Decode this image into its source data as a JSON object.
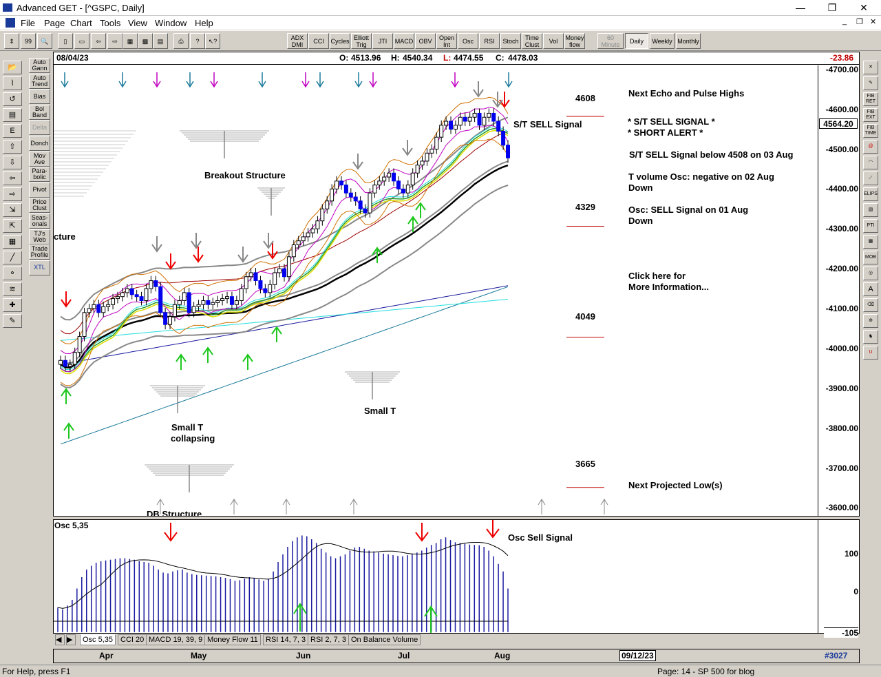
{
  "window": {
    "title": "Advanced GET - [^GSPC, Daily]",
    "min": "—",
    "restore": "❐",
    "close": "✕"
  },
  "menu": [
    "File",
    "Page",
    "Chart",
    "Tools",
    "View",
    "Window",
    "Help"
  ],
  "toolbar": {
    "indicators": [
      "ADX DMI",
      "CCI",
      "Cycles",
      "Elliott Trig",
      "JTI",
      "MACD",
      "OBV",
      "Open Int",
      "Osc",
      "RSI",
      "Stoch",
      "Time Clust",
      "Vol",
      "Money flow"
    ],
    "periods": [
      "60 Minute",
      "Daily",
      "Weekly",
      "Monthly"
    ],
    "active_period": "Daily"
  },
  "left_tools": [
    "Auto Gann",
    "Auto Trend",
    "Bias",
    "Bol Band",
    "Delta",
    "Donch",
    "Mov Ave",
    "Para-bolic",
    "Pivot",
    "Price Clust",
    "Seas-onals",
    "TJ's Web",
    "Trade Profile",
    "XTL"
  ],
  "left_icons": [
    "open-folder-icon",
    "elliott-wave-icon",
    "reset-icon",
    "study-icon",
    "elliott-icon",
    "arrow-up-icon",
    "arrow-down-icon",
    "arrow-left-icon",
    "arrow-right-icon",
    "compress-icon",
    "expand-icon",
    "spreadsheet-icon",
    "lines-icon",
    "gann-icon",
    "fib-icon",
    "crosshair-icon",
    "notes-icon"
  ],
  "right_tools": [
    "close-icon",
    "pencil-icon",
    "fib-ret-icon",
    "fib-ext-icon",
    "fib-time-icon",
    "spiral-icon",
    "arc-icon",
    "fan-icon",
    "elips-icon",
    "channel-icon",
    "pti-icon",
    "grid-icon",
    "mob-icon",
    "target-icon",
    "text-icon",
    "eraser-icon",
    "magnet-icon",
    "bull-icon",
    "magnet-red-icon"
  ],
  "right_tool_labels": {
    "fib_ret": "FIB RET",
    "fib_ext": "FIB EXT",
    "fib_time": "FIB TIME",
    "elips": "ELIPS",
    "pti": "PTI",
    "mob": "MOB",
    "text": "A"
  },
  "info": {
    "date": "08/04/23",
    "open_label": "O:",
    "open": "4513.96",
    "high_label": "H:",
    "high": "4540.34",
    "low_label": "L:",
    "low": "4474.55",
    "close_label": "C:",
    "close": "4478.03",
    "change": "-23.86"
  },
  "price_axis": {
    "ticks": [
      "4700.00",
      "4600.00",
      "4500.00",
      "4400.00",
      "4300.00",
      "4200.00",
      "4100.00",
      "4000.00",
      "3900.00",
      "3800.00",
      "3700.00",
      "3600.00"
    ],
    "current": "4564.20"
  },
  "levels": [
    {
      "value": "4608"
    },
    {
      "value": "4329"
    },
    {
      "value": "4049"
    },
    {
      "value": "3665"
    }
  ],
  "annotations": {
    "echo_highs": "Next Echo and Pulse Highs",
    "sell_signal_1": "* S/T SELL SIGNAL *",
    "short_alert": "* SHORT ALERT *",
    "sell_below": "S/T SELL Signal below 4508 on 03 Aug",
    "tvol_1": "T volume Osc: negative on 02 Aug",
    "tvol_2": "Down",
    "osc_1": "Osc: SELL Signal on 01 Aug",
    "osc_2": "Down",
    "click_1": "Click here for",
    "click_2": "More Information...",
    "proj_low": "Next Projected Low(s)",
    "st_sell": "S/T SELL Signal",
    "breakout": "Breakout Structure",
    "cture": "cture",
    "small_t": "Small T",
    "small_t_collapse_1": "Small T",
    "small_t_collapse_2": "collapsing",
    "db_structure": "DB Structure",
    "osc_sell": "Osc Sell Signal"
  },
  "osc": {
    "label": "Osc 5,35",
    "ticks": [
      "100",
      "0",
      "-105"
    ]
  },
  "osc_tabs": [
    "Osc 5,35",
    "CCI 20",
    "MACD 19, 39, 9",
    "Money Flow 11",
    "RSI 14, 7, 3",
    "RSI 2, 7, 3",
    "On Balance Volume"
  ],
  "active_osc_tab": "Osc 5,35",
  "time_axis": {
    "months": [
      "Apr",
      "May",
      "Jun",
      "Jul",
      "Aug"
    ],
    "end_date": "09/12/23",
    "bar_count": "#3027"
  },
  "status": {
    "help": "For Help, press F1",
    "page": "Page: 14 - SP 500 for blog"
  },
  "chart_data": {
    "type": "candlestick",
    "symbol": "^GSPC",
    "interval": "Daily",
    "ylim": [
      3580,
      4710
    ],
    "closes": [
      3970,
      3955,
      3960,
      3990,
      4030,
      4090,
      4100,
      4110,
      4090,
      4105,
      4110,
      4125,
      4130,
      4140,
      4150,
      4135,
      4130,
      4120,
      4150,
      4170,
      4155,
      4090,
      4060,
      4080,
      4110,
      4120,
      4140,
      4090,
      4105,
      4110,
      4120,
      4110,
      4115,
      4120,
      4125,
      4130,
      4110,
      4120,
      4150,
      4180,
      4190,
      4170,
      4150,
      4140,
      4160,
      4190,
      4200,
      4180,
      4230,
      4260,
      4270,
      4280,
      4290,
      4300,
      4320,
      4350,
      4370,
      4400,
      4420,
      4410,
      4390,
      4380,
      4370,
      4350,
      4340,
      4390,
      4410,
      4420,
      4430,
      4440,
      4420,
      4400,
      4390,
      4410,
      4440,
      4460,
      4470,
      4490,
      4500,
      4530,
      4560,
      4570,
      4550,
      4560,
      4580,
      4570,
      4580,
      4590,
      4560,
      4580,
      4590,
      4570,
      4545,
      4510,
      4478
    ],
    "osc_values": [
      -40,
      -45,
      -35,
      -20,
      10,
      40,
      60,
      70,
      78,
      82,
      84,
      86,
      88,
      90,
      90,
      88,
      86,
      82,
      80,
      78,
      70,
      60,
      52,
      50,
      55,
      58,
      60,
      52,
      48,
      46,
      45,
      44,
      43,
      42,
      40,
      38,
      35,
      30,
      32,
      36,
      40,
      38,
      34,
      30,
      35,
      55,
      80,
      100,
      120,
      135,
      145,
      150,
      148,
      140,
      130,
      115,
      105,
      95,
      90,
      95,
      100,
      110,
      118,
      120,
      115,
      110,
      108,
      105,
      102,
      100,
      98,
      96,
      95,
      98,
      102,
      105,
      110,
      118,
      125,
      130,
      140,
      145,
      138,
      132,
      130,
      128,
      126,
      125,
      124,
      120,
      110,
      95,
      75,
      55,
      10
    ]
  }
}
